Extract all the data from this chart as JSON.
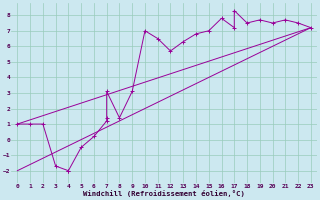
{
  "xlabel": "Windchill (Refroidissement éolien,°C)",
  "bg_color": "#cce8f0",
  "line_color": "#990099",
  "grid_color": "#99ccbb",
  "xlim": [
    -0.5,
    23.5
  ],
  "ylim": [
    -2.8,
    8.8
  ],
  "xticks": [
    0,
    1,
    2,
    3,
    4,
    5,
    6,
    7,
    8,
    9,
    10,
    11,
    12,
    13,
    14,
    15,
    16,
    17,
    18,
    19,
    20,
    21,
    22,
    23
  ],
  "yticks": [
    -2,
    -1,
    0,
    1,
    2,
    3,
    4,
    5,
    6,
    7,
    8
  ],
  "scatter_x": [
    0,
    1,
    2,
    3,
    4,
    4,
    5,
    6,
    7,
    7,
    7,
    8,
    9,
    10,
    11,
    12,
    13,
    14,
    15,
    16,
    17,
    17,
    18,
    19,
    20,
    21,
    22,
    23
  ],
  "scatter_y": [
    1,
    1,
    1,
    -1.7,
    -2,
    -2,
    -0.5,
    0.2,
    1.2,
    1.4,
    3.1,
    1.4,
    3.1,
    7.0,
    6.5,
    5.7,
    6.3,
    6.8,
    7.0,
    7.8,
    7.2,
    8.3,
    7.5,
    7.7,
    7.5,
    7.7,
    7.5,
    7.2
  ],
  "line1_x": [
    0,
    23
  ],
  "line1_y": [
    1.0,
    7.2
  ],
  "line2_x": [
    0,
    23
  ],
  "line2_y": [
    -2.0,
    7.2
  ]
}
